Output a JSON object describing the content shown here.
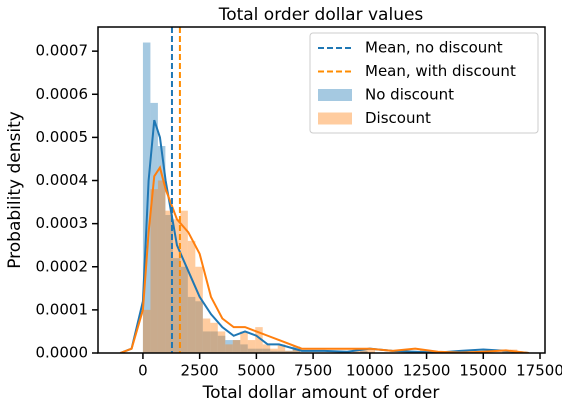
{
  "chart_data": {
    "type": "histogram",
    "title": "Total order dollar values",
    "xlabel": "Total dollar amount of order",
    "ylabel": "Probability density",
    "xlim": [
      -1980,
      17720
    ],
    "ylim": [
      0,
      0.000756
    ],
    "xticks": [
      0,
      2500,
      5000,
      7500,
      10000,
      12500,
      15000,
      17500
    ],
    "yticks": [
      {
        "value": 0,
        "label": "0.0000"
      },
      {
        "value": 0.0001,
        "label": "0.0001"
      },
      {
        "value": 0.0002,
        "label": "0.0002"
      },
      {
        "value": 0.0003,
        "label": "0.0003"
      },
      {
        "value": 0.0004,
        "label": "0.0004"
      },
      {
        "value": 0.0005,
        "label": "0.0005"
      },
      {
        "value": 0.0006,
        "label": "0.0006"
      },
      {
        "value": 0.0007,
        "label": "0.0007"
      }
    ],
    "legend": "upper right",
    "bins": [
      0,
      330,
      660,
      990,
      1320,
      1650,
      1980,
      2310,
      2640,
      2970,
      3300,
      3630,
      3960,
      4290,
      4620,
      4950,
      5280,
      5610,
      5940,
      6270,
      6600,
      6930,
      7260,
      7590,
      7920,
      8250,
      8580,
      8910,
      9240,
      9570,
      9900,
      10230,
      10560,
      10890,
      11220,
      11550,
      11880,
      12210,
      12540,
      12870,
      13200,
      13530,
      13860,
      14190,
      14520,
      14850,
      15180,
      15510,
      15840,
      16170,
      16500
    ],
    "series": [
      {
        "name": "No discount",
        "color": "#1f77b4",
        "values": [
          0.00072,
          0.00058,
          0.00048,
          0.00032,
          0.00022,
          0.0002,
          0.00013,
          0.00012,
          5e-05,
          5e-05,
          4e-05,
          3e-05,
          3e-05,
          2e-05,
          1e-05,
          1e-05,
          1e-05,
          5e-06,
          5e-06,
          5e-06,
          1.5e-05,
          0,
          0,
          0,
          0,
          0,
          0,
          0,
          0,
          5e-06,
          0,
          0,
          0,
          0,
          0,
          0,
          0,
          5e-06,
          0,
          0,
          0,
          0,
          0,
          0,
          0,
          0,
          0,
          0,
          5e-06,
          0
        ]
      },
      {
        "name": "Discount",
        "color": "#ff7f0e",
        "values": [
          0.0001,
          0.00038,
          0.0004,
          0.00033,
          0.00031,
          0.00033,
          0.00026,
          0.0002,
          8e-05,
          7e-05,
          5e-05,
          2e-05,
          3e-05,
          5e-05,
          3e-05,
          6e-05,
          2e-05,
          1e-05,
          2e-05,
          5e-06,
          1e-05,
          0,
          0,
          0,
          0,
          0,
          0,
          0,
          1e-05,
          1e-05,
          1e-05,
          0,
          0,
          0,
          0,
          0,
          0,
          8e-06,
          0,
          0,
          0,
          0,
          0,
          0,
          0,
          0,
          0,
          0,
          0,
          8e-06
        ]
      }
    ],
    "kde": [
      {
        "color": "#1f77b4",
        "x": [
          -1000,
          -500,
          0,
          250,
          500,
          750,
          1000,
          1500,
          2000,
          2500,
          3000,
          3500,
          4000,
          4500,
          5000,
          5500,
          6000,
          7000,
          8000,
          9000,
          10000,
          11000,
          12000,
          13000,
          14000,
          15000,
          16000,
          17000
        ],
        "values": [
          0,
          1e-05,
          0.00012,
          0.0004,
          0.00054,
          0.0005,
          0.0004,
          0.00025,
          0.00019,
          0.00013,
          9e-05,
          6e-05,
          4e-05,
          5e-05,
          4e-05,
          2e-05,
          2e-05,
          5e-06,
          5e-06,
          3e-06,
          1e-05,
          5e-06,
          3e-06,
          1e-06,
          5e-06,
          8e-06,
          5e-06,
          0
        ]
      },
      {
        "color": "#ff7f0e",
        "x": [
          -1000,
          -500,
          0,
          250,
          500,
          750,
          1000,
          1500,
          2000,
          2500,
          3000,
          3500,
          4000,
          4500,
          5000,
          5500,
          6000,
          7000,
          8000,
          9000,
          10000,
          11000,
          12000,
          13000,
          14000,
          15000,
          16000,
          17000
        ],
        "values": [
          0,
          1e-05,
          0.0001,
          0.00028,
          0.00041,
          0.00043,
          0.00038,
          0.00031,
          0.00028,
          0.00023,
          0.00013,
          8e-05,
          6e-05,
          6e-05,
          5e-05,
          4e-05,
          3e-05,
          1e-05,
          1e-05,
          1e-05,
          1e-05,
          5e-06,
          1e-05,
          3e-06,
          1e-06,
          3e-06,
          6e-06,
          0
        ]
      }
    ],
    "mean_lines": [
      {
        "name": "Mean, no discount",
        "color": "#1f77b4",
        "value": 1280
      },
      {
        "name": "Mean, with discount",
        "color": "#ff8c00",
        "value": 1630
      }
    ]
  }
}
